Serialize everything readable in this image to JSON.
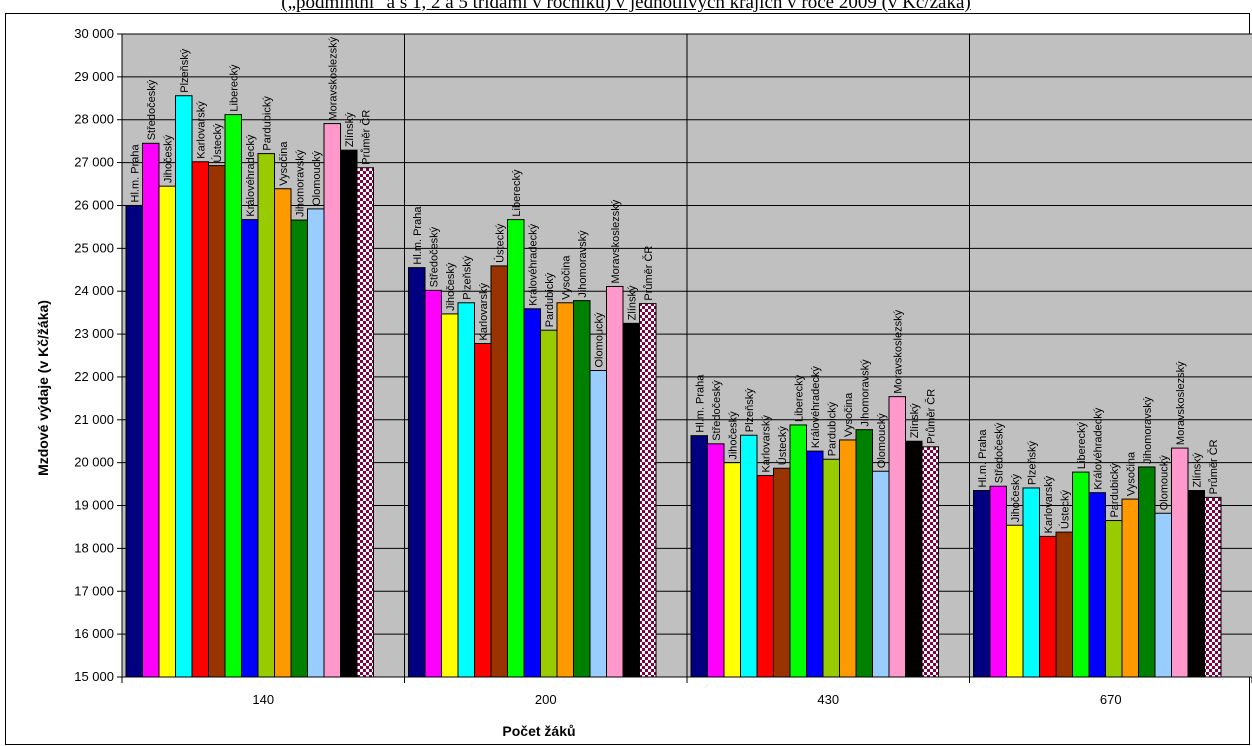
{
  "chart_data": {
    "type": "bar",
    "title": "(„podmíntní\" a s 1, 2 a 5 třídami v ročníku) v jednotlivých krajích v roce 2009 (v Kč/žáka)",
    "xlabel": "Počet žáků",
    "ylabel": "Mzdové výdaje  (v Kč/žáka)",
    "ylim": [
      15000,
      30000
    ],
    "yticks": [
      15000,
      16000,
      17000,
      18000,
      19000,
      20000,
      21000,
      22000,
      23000,
      24000,
      25000,
      26000,
      27000,
      28000,
      29000,
      30000
    ],
    "ytick_labels": [
      "15 000",
      "16 000",
      "17 000",
      "18 000",
      "19 000",
      "20 000",
      "21 000",
      "22 000",
      "23 000",
      "24 000",
      "25 000",
      "26 000",
      "27 000",
      "28 000",
      "29 000",
      "30 000"
    ],
    "grid": true,
    "background": "#c0c0c0",
    "categories": [
      "140",
      "200",
      "430",
      "670"
    ],
    "series": [
      {
        "name": "Hl.m. Praha",
        "color": "#000080",
        "values": [
          26000,
          24550,
          20630,
          19350
        ]
      },
      {
        "name": "Středočeský",
        "color": "#ff00ff",
        "values": [
          27450,
          24020,
          20440,
          19450
        ]
      },
      {
        "name": "Jihočeský",
        "color": "#ffff00",
        "values": [
          26450,
          23470,
          20000,
          18540
        ]
      },
      {
        "name": "Plzeňský",
        "color": "#00ffff",
        "values": [
          28560,
          23730,
          20640,
          19410
        ]
      },
      {
        "name": "Karlovarský",
        "color": "#ff0000",
        "values": [
          27020,
          22780,
          19700,
          18280
        ]
      },
      {
        "name": "Ústecký",
        "color": "#993300",
        "values": [
          26930,
          24590,
          19870,
          18380
        ]
      },
      {
        "name": "Liberecký",
        "color": "#00ff00",
        "values": [
          28120,
          25670,
          20880,
          19780
        ]
      },
      {
        "name": "Královéhradecký",
        "color": "#0000ff",
        "values": [
          25670,
          23590,
          20270,
          19300
        ]
      },
      {
        "name": "Pardubický",
        "color": "#99cc00",
        "values": [
          27210,
          23090,
          20080,
          18650
        ]
      },
      {
        "name": "Vysočina",
        "color": "#ff9900",
        "values": [
          26390,
          23730,
          20530,
          19150
        ]
      },
      {
        "name": "Jihomoravský",
        "color": "#008000",
        "values": [
          25660,
          23780,
          20770,
          19900
        ]
      },
      {
        "name": "Olomoucký",
        "color": "#99ccff",
        "values": [
          25920,
          22150,
          19800,
          18820
        ]
      },
      {
        "name": "Moravskoslezský",
        "color": "#ff99cc",
        "values": [
          27910,
          24110,
          21540,
          20340
        ]
      },
      {
        "name": "Zlínský",
        "color": "#000000",
        "values": [
          27290,
          23250,
          20500,
          19350
        ]
      },
      {
        "name": "Průměr ČR",
        "color": "#800040",
        "pattern": "checker",
        "values": [
          26880,
          23710,
          20370,
          19190
        ]
      }
    ]
  }
}
